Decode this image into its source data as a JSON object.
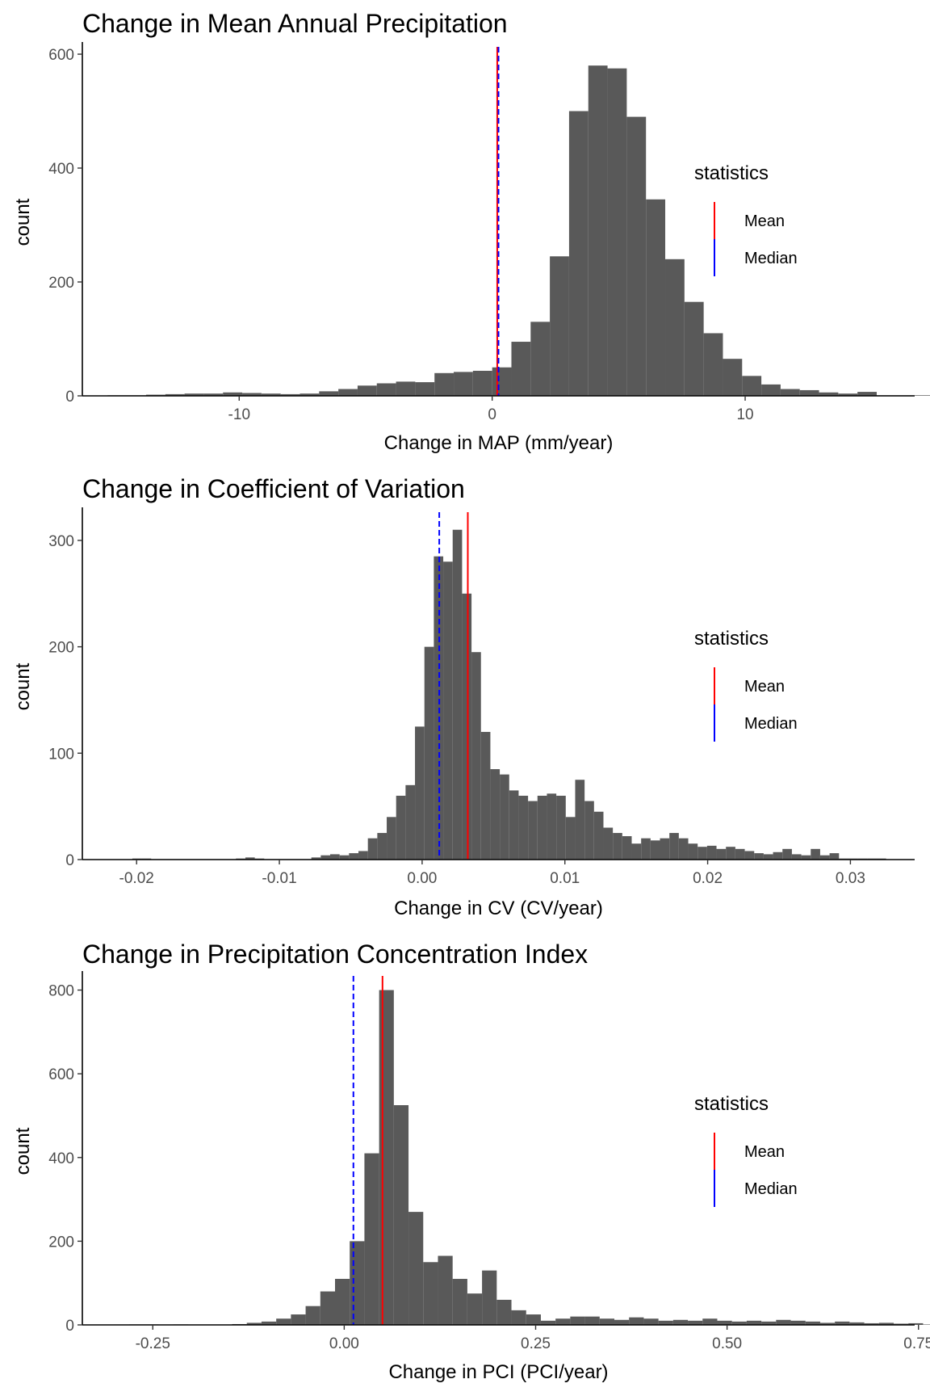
{
  "chart_data": [
    {
      "type": "bar",
      "title": "Change in Mean Annual Precipitation",
      "xlabel": "Change in MAP (mm/year)",
      "ylabel": "count",
      "xlim": [
        -16.2,
        16.7
      ],
      "ylim": [
        0,
        610
      ],
      "x_ticks": [
        -10,
        0,
        10
      ],
      "x_tick_labels": [
        "-10",
        "0",
        "10"
      ],
      "y_ticks": [
        0,
        200,
        400,
        600
      ],
      "y_tick_labels": [
        "0",
        "200",
        "400",
        "600"
      ],
      "bin_start": -15.2,
      "bin_width": 0.76,
      "counts": [
        1,
        1,
        2,
        3,
        4,
        4,
        6,
        5,
        4,
        3,
        4,
        8,
        12,
        18,
        22,
        25,
        24,
        40,
        42,
        44,
        50,
        95,
        130,
        245,
        500,
        580,
        575,
        490,
        345,
        240,
        165,
        110,
        65,
        35,
        20,
        12,
        10,
        6,
        4,
        7,
        1,
        1,
        1,
        1,
        0,
        1,
        1,
        1
      ],
      "statistics": {
        "mean": 0.2,
        "median": 0.25
      },
      "legend": {
        "title": "statistics",
        "entries": [
          "Mean",
          "Median"
        ],
        "colors": [
          "#ff0000",
          "#0000ff"
        ],
        "position": "right"
      },
      "bar_color": "#595959",
      "grid": false
    },
    {
      "type": "bar",
      "title": "Change in Coefficient of Variation",
      "xlabel": "Change in CV (CV/year)",
      "ylabel": "count",
      "xlim": [
        -0.0238,
        0.0345
      ],
      "ylim": [
        0,
        325
      ],
      "x_ticks": [
        -0.02,
        -0.01,
        0.0,
        0.01,
        0.02,
        0.03
      ],
      "x_tick_labels": [
        "-0.02",
        "-0.01",
        "0.00",
        "0.01",
        "0.02",
        "0.03"
      ],
      "y_ticks": [
        0,
        100,
        200,
        300
      ],
      "y_tick_labels": [
        "0",
        "100",
        "200",
        "300"
      ],
      "bin_start": -0.0203,
      "bin_width": 0.00066,
      "counts": [
        1,
        1,
        0,
        0,
        0,
        0,
        0,
        0,
        0,
        0,
        0,
        1,
        2,
        1,
        0,
        0,
        0,
        0,
        0,
        2,
        4,
        5,
        4,
        6,
        8,
        20,
        25,
        40,
        60,
        70,
        125,
        200,
        285,
        280,
        310,
        250,
        195,
        120,
        85,
        80,
        65,
        60,
        55,
        60,
        62,
        60,
        40,
        75,
        55,
        45,
        30,
        25,
        22,
        15,
        20,
        18,
        20,
        25,
        20,
        15,
        12,
        13,
        10,
        12,
        10,
        8,
        6,
        5,
        7,
        10,
        5,
        4,
        10,
        4,
        6,
        1,
        1,
        1,
        1,
        1
      ],
      "statistics": {
        "mean": 0.0032,
        "median": 0.0012
      },
      "legend": {
        "title": "statistics",
        "entries": [
          "Mean",
          "Median"
        ],
        "colors": [
          "#ff0000",
          "#0000ff"
        ],
        "position": "right"
      },
      "bar_color": "#595959",
      "grid": false
    },
    {
      "type": "bar",
      "title": "Change in Precipitation Concentration Index",
      "xlabel": "Change in PCI (PCI/year)",
      "ylabel": "count",
      "xlim": [
        -0.342,
        0.745
      ],
      "ylim": [
        0,
        830
      ],
      "x_ticks": [
        -0.25,
        0.0,
        0.25,
        0.5,
        0.75
      ],
      "x_tick_labels": [
        "-0.25",
        "0.00",
        "0.25",
        "0.50",
        "0.75"
      ],
      "y_ticks": [
        0,
        200,
        400,
        600,
        800
      ],
      "y_tick_labels": [
        "0",
        "200",
        "400",
        "600",
        "800"
      ],
      "bin_start": -0.3,
      "bin_width": 0.0192,
      "counts": [
        1,
        0,
        0,
        1,
        0,
        1,
        1,
        1,
        2,
        5,
        8,
        15,
        25,
        45,
        80,
        110,
        200,
        410,
        800,
        525,
        270,
        150,
        165,
        110,
        75,
        130,
        60,
        35,
        25,
        10,
        15,
        20,
        20,
        15,
        12,
        18,
        15,
        10,
        12,
        10,
        15,
        10,
        8,
        10,
        8,
        12,
        10,
        8,
        5,
        8,
        6,
        4,
        5,
        3,
        4,
        1,
        1
      ],
      "statistics": {
        "mean": 0.05,
        "median": 0.012
      },
      "legend": {
        "title": "statistics",
        "entries": [
          "Mean",
          "Median"
        ],
        "colors": [
          "#ff0000",
          "#0000ff"
        ],
        "position": "right"
      },
      "bar_color": "#595959",
      "grid": false
    }
  ]
}
